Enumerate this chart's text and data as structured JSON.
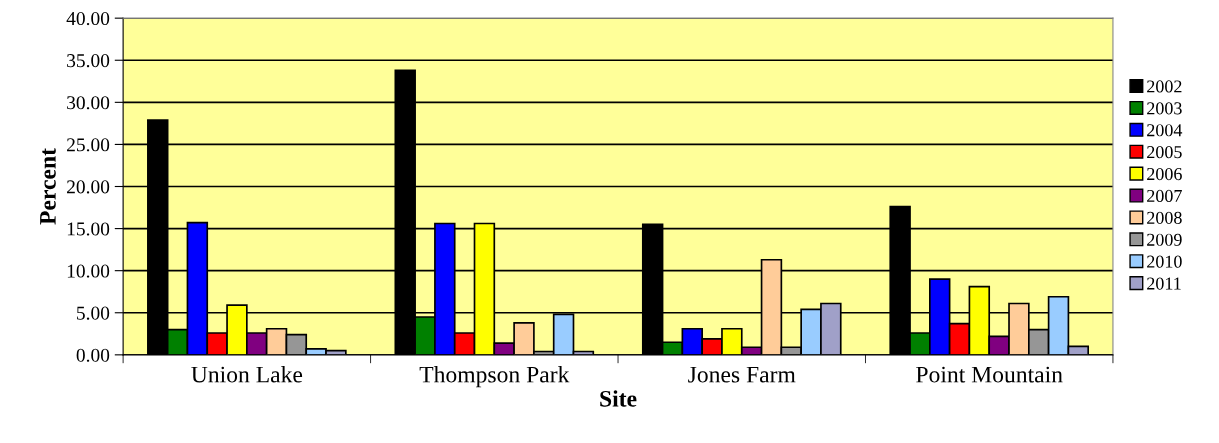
{
  "chart_data": {
    "type": "bar",
    "xlabel": "Site",
    "ylabel": "Percent",
    "categories": [
      "Union Lake",
      "Thompson Park",
      "Jones Farm",
      "Point Mountain"
    ],
    "series": [
      {
        "name": "2002",
        "color": "#000000",
        "values": [
          27.9,
          33.8,
          15.5,
          17.6
        ]
      },
      {
        "name": "2003",
        "color": "#008000",
        "values": [
          3.0,
          4.5,
          1.5,
          2.6
        ]
      },
      {
        "name": "2004",
        "color": "#0000ff",
        "values": [
          15.7,
          15.6,
          3.1,
          9.0
        ]
      },
      {
        "name": "2005",
        "color": "#ff0000",
        "values": [
          2.6,
          2.6,
          1.9,
          3.7
        ]
      },
      {
        "name": "2006",
        "color": "#ffff00",
        "values": [
          5.9,
          15.6,
          3.1,
          8.1
        ]
      },
      {
        "name": "2007",
        "color": "#800080",
        "values": [
          2.6,
          1.4,
          0.9,
          2.2
        ]
      },
      {
        "name": "2008",
        "color": "#ffcc99",
        "values": [
          3.1,
          3.8,
          11.3,
          6.1
        ]
      },
      {
        "name": "2009",
        "color": "#969696",
        "values": [
          2.4,
          0.4,
          0.9,
          3.0
        ]
      },
      {
        "name": "2010",
        "color": "#99ccff",
        "values": [
          0.7,
          4.8,
          5.4,
          6.9
        ]
      },
      {
        "name": "2011",
        "color": "#a0a0c8",
        "values": [
          0.5,
          0.4,
          6.1,
          1.0
        ]
      }
    ],
    "ylim": [
      0,
      40
    ],
    "yticks": [
      {
        "value": 0,
        "label": "0.00"
      },
      {
        "value": 5,
        "label": "5.00"
      },
      {
        "value": 10,
        "label": "10.00"
      },
      {
        "value": 15,
        "label": "15.00"
      },
      {
        "value": 20,
        "label": "20.00"
      },
      {
        "value": 25,
        "label": "25.00"
      },
      {
        "value": 30,
        "label": "30.00"
      },
      {
        "value": 35,
        "label": "35.00"
      },
      {
        "value": 40,
        "label": "40.00"
      }
    ],
    "grid": "y",
    "legend": "right"
  }
}
